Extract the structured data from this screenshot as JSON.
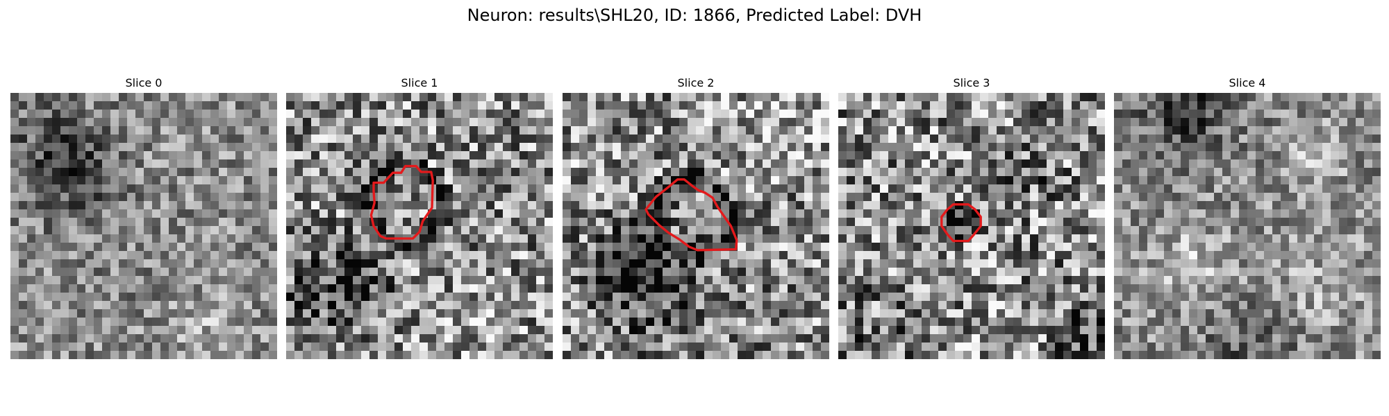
{
  "figure": {
    "title": "Neuron: results\\SHL20, ID: 1866, Predicted Label: DVH"
  },
  "panels": [
    {
      "title": "Slice 0",
      "seed": 11,
      "contrast": 0.55,
      "dark_ring": false,
      "contour": false
    },
    {
      "title": "Slice 1",
      "seed": 23,
      "contrast": 0.85,
      "dark_ring": true,
      "contour": true
    },
    {
      "title": "Slice 2",
      "seed": 37,
      "contrast": 0.85,
      "dark_ring": true,
      "contour": true
    },
    {
      "title": "Slice 3",
      "seed": 41,
      "contrast": 0.9,
      "dark_ring": false,
      "contour": true
    },
    {
      "title": "Slice 4",
      "seed": 59,
      "contrast": 0.55,
      "dark_ring": false,
      "contour": false
    }
  ],
  "colors": {
    "contour": "#e41a1c",
    "background": "#ffffff"
  }
}
